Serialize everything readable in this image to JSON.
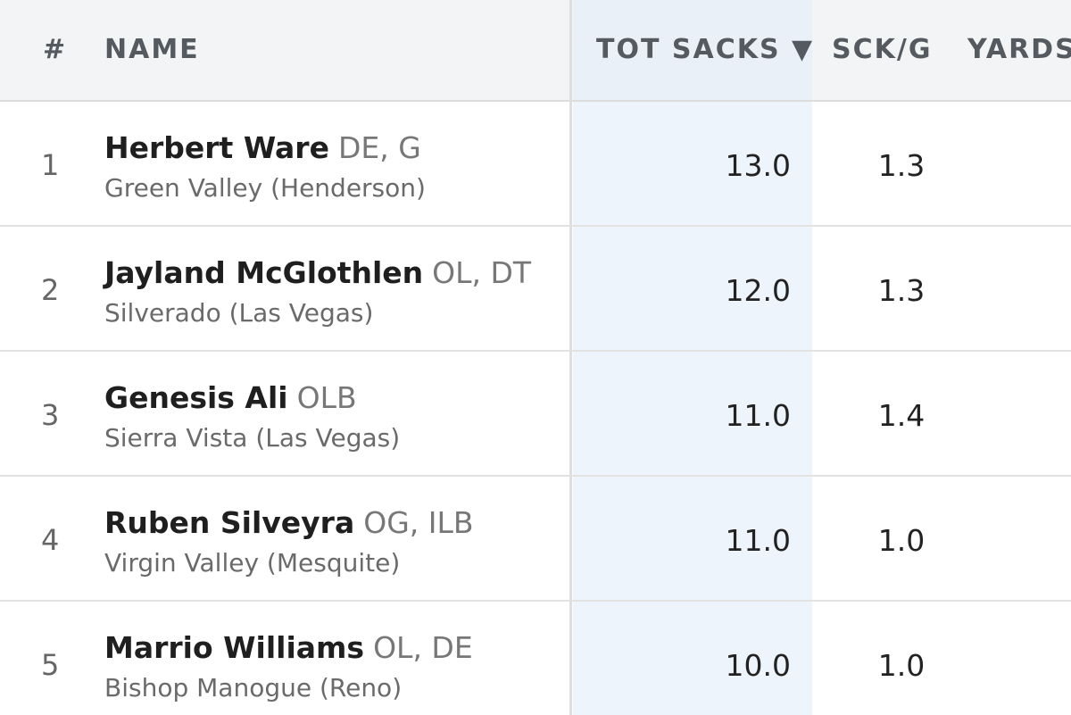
{
  "columns": {
    "rank": "#",
    "name": "NAME",
    "tot_sacks": "TOT SACKS ▼",
    "sck_per_g": "SCK/G",
    "yards": "YARDS"
  },
  "rows": [
    {
      "rank": "1",
      "name": "Herbert Ware",
      "pos": "DE, G",
      "school": "Green Valley (Henderson)",
      "tot_sacks": "13.0",
      "sck_per_g": "1.3"
    },
    {
      "rank": "2",
      "name": "Jayland McGlothlen",
      "pos": "OL, DT",
      "school": "Silverado (Las Vegas)",
      "tot_sacks": "12.0",
      "sck_per_g": "1.3"
    },
    {
      "rank": "3",
      "name": "Genesis Ali",
      "pos": "OLB",
      "school": "Sierra Vista (Las Vegas)",
      "tot_sacks": "11.0",
      "sck_per_g": "1.4"
    },
    {
      "rank": "4",
      "name": "Ruben Silveyra",
      "pos": "OG, ILB",
      "school": "Virgin Valley (Mesquite)",
      "tot_sacks": "11.0",
      "sck_per_g": "1.0"
    },
    {
      "rank": "5",
      "name": "Marrio Williams",
      "pos": "OL, DE",
      "school": "Bishop Manogue (Reno)",
      "tot_sacks": "10.0",
      "sck_per_g": "1.0"
    }
  ],
  "colors": {
    "header_bg": "#f3f4f5",
    "sorted_column_bg": "#eef4fb",
    "header_text": "#555a60"
  }
}
